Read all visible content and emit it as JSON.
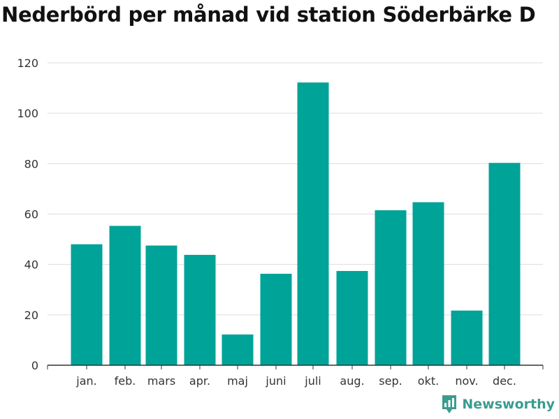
{
  "chart_data": {
    "type": "bar",
    "title": "Nederbörd per månad vid station Söderbärke D",
    "categories": [
      "jan.",
      "feb.",
      "mars",
      "apr.",
      "maj",
      "juni",
      "juli",
      "aug.",
      "sep.",
      "okt.",
      "nov.",
      "dec."
    ],
    "values": [
      48,
      55.3,
      47.5,
      43.8,
      12.2,
      36.3,
      112.2,
      37.4,
      61.5,
      64.7,
      21.7,
      80.3
    ],
    "ylim": [
      0,
      120
    ],
    "yticks": [
      0,
      20,
      40,
      60,
      80,
      100,
      120
    ],
    "xlabel": "",
    "ylabel": "",
    "grid": true,
    "bar_color": "#00a398"
  },
  "brand": {
    "name": "Newsworthy",
    "icon": "newsworthy-logo-icon",
    "color": "#3a9c8e"
  }
}
